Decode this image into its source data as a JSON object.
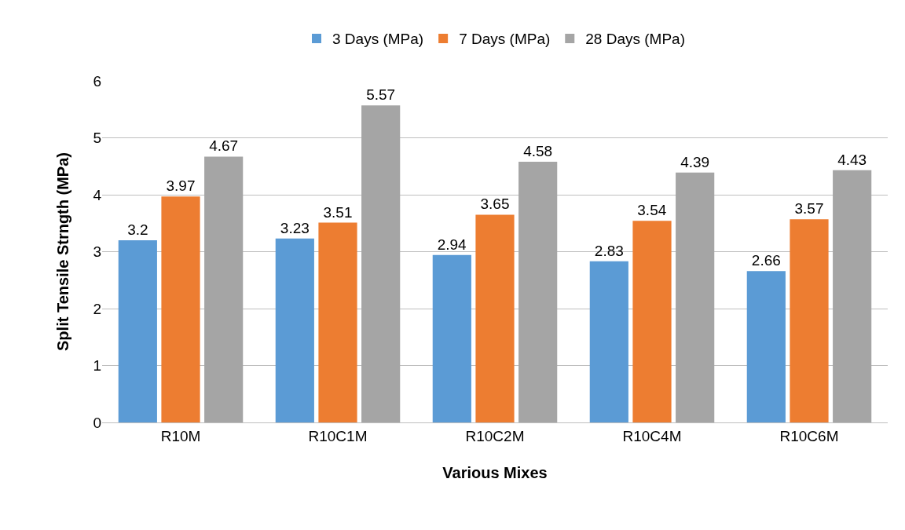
{
  "chart_data": {
    "type": "bar",
    "xlabel": "Various Mixes",
    "ylabel": "Split Tensile Strngth (MPa)",
    "categories": [
      "R10M",
      "R10C1M",
      "R10C2M",
      "R10C4M",
      "R10C6M"
    ],
    "series": [
      {
        "name": "3 Days (MPa)",
        "color": "#5b9bd5",
        "values": [
          3.2,
          3.23,
          2.94,
          2.83,
          2.66
        ]
      },
      {
        "name": "7 Days (MPa)",
        "color": "#ed7d31",
        "values": [
          3.97,
          3.51,
          3.65,
          3.54,
          3.57
        ]
      },
      {
        "name": "28 Days (MPa)",
        "color": "#a5a5a5",
        "values": [
          4.67,
          5.57,
          4.58,
          4.39,
          4.43
        ]
      }
    ],
    "ylim": [
      0,
      6
    ],
    "yticks": [
      0,
      1,
      2,
      3,
      4,
      5,
      6
    ],
    "grid": "y",
    "legend": "top",
    "data_labels": true
  }
}
